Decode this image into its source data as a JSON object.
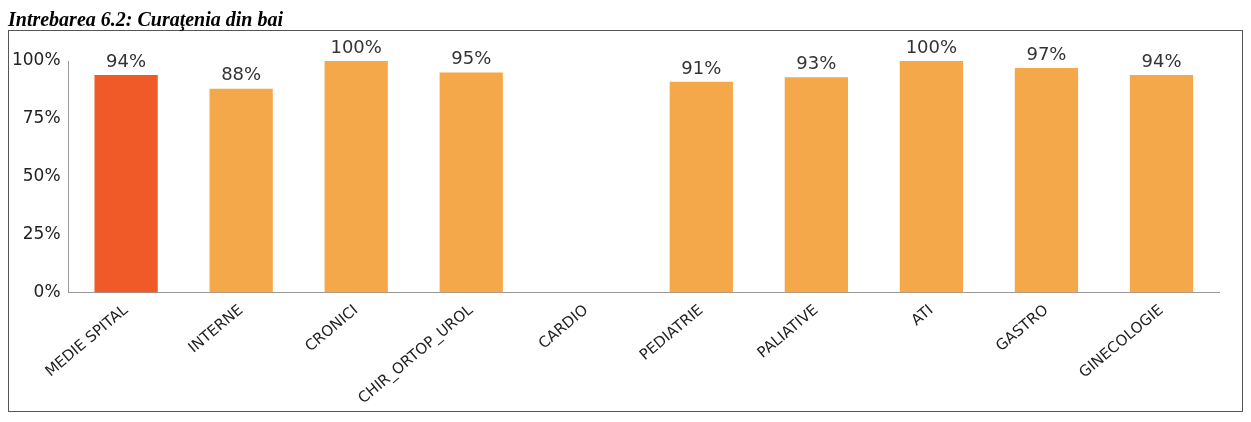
{
  "chart_data": {
    "type": "bar",
    "title": "Intrebarea 6.2: Curaţenia din bai",
    "categories": [
      "MEDIE SPITAL",
      "INTERNE",
      "CRONICI",
      "CHIR_ORTOP_UROL",
      "CARDIO",
      "PEDIATRIE",
      "PALIATIVE",
      "ATI",
      "GASTRO",
      "GINECOLOGIE"
    ],
    "values": [
      94,
      88,
      100,
      95,
      null,
      91,
      93,
      100,
      97,
      94
    ],
    "value_labels": [
      "94%",
      "88%",
      "100%",
      "95%",
      null,
      "91%",
      "93%",
      "100%",
      "97%",
      "94%"
    ],
    "colors": [
      "#f05a28",
      "#f5a84a",
      "#f5a84a",
      "#f5a84a",
      "#f5a84a",
      "#f5a84a",
      "#f5a84a",
      "#f5a84a",
      "#f5a84a",
      "#f5a84a"
    ],
    "ylim": [
      0,
      100
    ],
    "yticks": [
      {
        "value": 0,
        "label": "0%"
      },
      {
        "value": 25,
        "label": "25%"
      },
      {
        "value": 50,
        "label": "50%"
      },
      {
        "value": 75,
        "label": "75%"
      },
      {
        "value": 100,
        "label": "100%"
      }
    ],
    "grid": false,
    "legend": false
  }
}
